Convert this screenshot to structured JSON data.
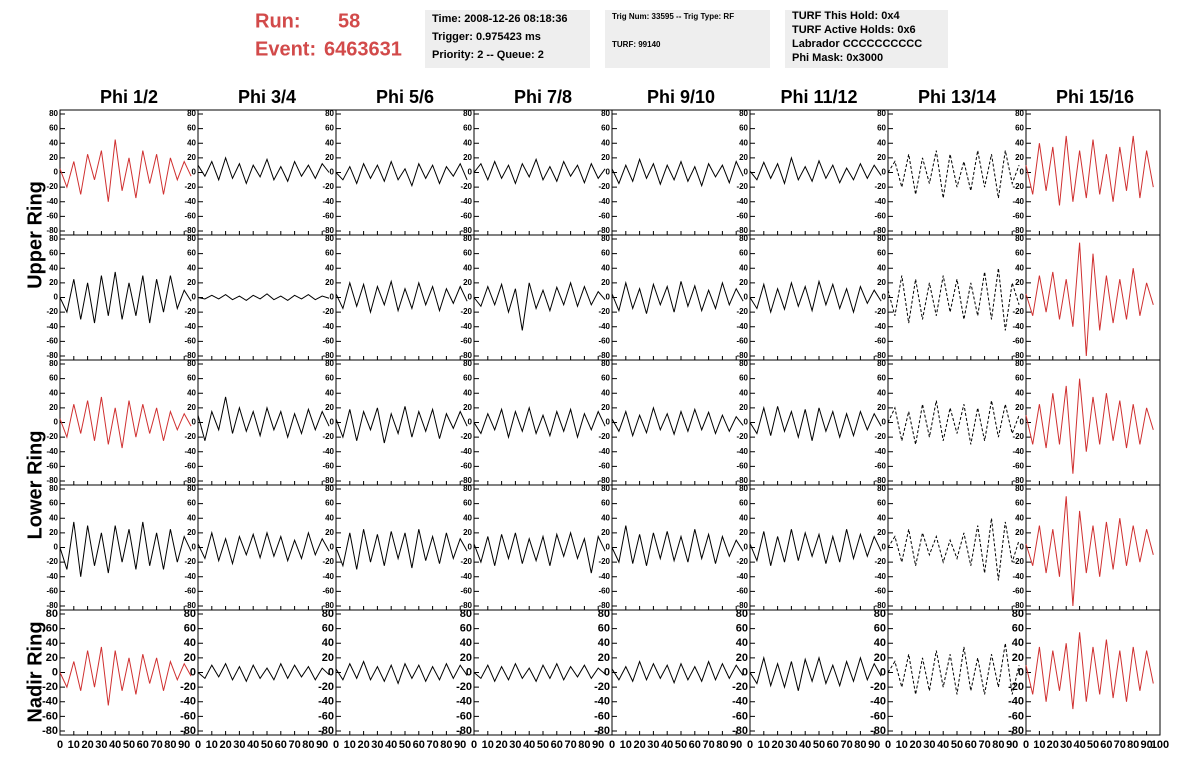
{
  "header": {
    "run_label": "Run:",
    "run": "58",
    "event_label": "Event:",
    "event": "6463631",
    "box1": [
      "Time: 2008-12-26 08:18:36",
      "Trigger: 0.975423 ms",
      "Priority: 2 -- Queue: 2"
    ],
    "box2": [
      "Trig Num: 33595 -- Trig Type: RF",
      "TURF: 99140"
    ],
    "box3": [
      "TURF This Hold: 0x4",
      "TURF Active Holds: 0x6",
      "Labrador CCCCCCCCCC",
      "Phi Mask: 0x3000"
    ]
  },
  "columns": [
    "Phi 1/2",
    "Phi 3/4",
    "Phi 5/6",
    "Phi 7/8",
    "Phi 9/10",
    "Phi 11/12",
    "Phi 13/14",
    "Phi 15/16"
  ],
  "row_labels": [
    "Upper Ring",
    "Lower Ring",
    "Nadir Ring"
  ],
  "chart_data": {
    "type": "line",
    "x": [
      0,
      5,
      10,
      15,
      20,
      25,
      30,
      35,
      40,
      45,
      50,
      55,
      60,
      65,
      70,
      75,
      80,
      85,
      90,
      95
    ],
    "xlim": [
      0,
      100
    ],
    "xticks": [
      0,
      10,
      20,
      30,
      40,
      50,
      60,
      70,
      80,
      90,
      100
    ],
    "ylim": [
      -80,
      80
    ],
    "yticks": [
      80,
      60,
      40,
      20,
      0,
      -20,
      -40,
      -60,
      -80
    ],
    "panels": [
      [
        {
          "color": "#d03030",
          "dashed": false,
          "values": [
            5,
            -20,
            15,
            -30,
            25,
            -10,
            30,
            -40,
            45,
            -25,
            20,
            -35,
            30,
            -15,
            25,
            -30,
            20,
            -10,
            15,
            -5
          ]
        },
        {
          "color": "#000000",
          "dashed": false,
          "values": [
            10,
            -5,
            15,
            -10,
            20,
            -8,
            12,
            -15,
            10,
            -6,
            18,
            -10,
            8,
            -12,
            15,
            -5,
            10,
            -8,
            12,
            0
          ]
        },
        {
          "color": "#000000",
          "dashed": false,
          "values": [
            0,
            -10,
            8,
            -15,
            12,
            -8,
            10,
            -12,
            15,
            -10,
            5,
            -18,
            12,
            -8,
            10,
            -15,
            8,
            -5,
            12,
            -10
          ]
        },
        {
          "color": "#000000",
          "dashed": false,
          "values": [
            0,
            12,
            -10,
            15,
            -8,
            10,
            -15,
            12,
            -6,
            18,
            -10,
            8,
            -12,
            15,
            -5,
            10,
            -14,
            12,
            -8,
            5
          ]
        },
        {
          "color": "#000000",
          "dashed": false,
          "values": [
            5,
            -15,
            10,
            -12,
            18,
            -8,
            12,
            -16,
            10,
            -10,
            15,
            -12,
            8,
            -18,
            12,
            -6,
            10,
            -14,
            15,
            -5
          ]
        },
        {
          "color": "#000000",
          "dashed": false,
          "values": [
            2,
            -10,
            14,
            -8,
            12,
            -15,
            20,
            -10,
            8,
            -12,
            16,
            -8,
            10,
            -14,
            6,
            -10,
            12,
            -8,
            10,
            -4
          ]
        },
        {
          "color": "#000000",
          "dashed": true,
          "values": [
            0,
            15,
            -20,
            25,
            -30,
            20,
            -15,
            30,
            -35,
            25,
            -20,
            15,
            -25,
            30,
            -20,
            25,
            -35,
            30,
            -15,
            10
          ]
        },
        {
          "color": "#d03030",
          "dashed": false,
          "values": [
            10,
            -30,
            40,
            -25,
            35,
            -45,
            50,
            -40,
            30,
            -35,
            45,
            -30,
            25,
            -40,
            35,
            -25,
            50,
            -35,
            30,
            -20
          ]
        }
      ],
      [
        {
          "color": "#000000",
          "dashed": false,
          "values": [
            0,
            -20,
            25,
            -30,
            20,
            -35,
            30,
            -25,
            35,
            -30,
            20,
            -25,
            30,
            -35,
            25,
            -20,
            30,
            -15,
            10,
            -5
          ]
        },
        {
          "color": "#000000",
          "dashed": false,
          "values": [
            0,
            -2,
            3,
            -2,
            4,
            -3,
            2,
            -4,
            3,
            -2,
            5,
            -3,
            2,
            -4,
            3,
            -2,
            4,
            -3,
            2,
            -1
          ]
        },
        {
          "color": "#000000",
          "dashed": false,
          "values": [
            5,
            -15,
            20,
            -12,
            18,
            -20,
            15,
            -10,
            22,
            -18,
            12,
            -15,
            20,
            -10,
            15,
            -18,
            12,
            -8,
            15,
            -5
          ]
        },
        {
          "color": "#000000",
          "dashed": false,
          "values": [
            0,
            -12,
            15,
            -10,
            18,
            -20,
            12,
            -45,
            20,
            -15,
            10,
            -18,
            14,
            -10,
            20,
            -12,
            15,
            -10,
            8,
            -3
          ]
        },
        {
          "color": "#000000",
          "dashed": false,
          "values": [
            5,
            -18,
            20,
            -15,
            12,
            -22,
            18,
            -10,
            15,
            -20,
            22,
            -12,
            16,
            -18,
            10,
            -15,
            20,
            -10,
            12,
            -5
          ]
        },
        {
          "color": "#000000",
          "dashed": false,
          "values": [
            0,
            -15,
            18,
            -20,
            12,
            -16,
            20,
            -12,
            15,
            -18,
            22,
            -10,
            18,
            -15,
            12,
            -20,
            15,
            -8,
            10,
            -5
          ]
        },
        {
          "color": "#000000",
          "dashed": true,
          "values": [
            10,
            -25,
            30,
            -35,
            25,
            -30,
            20,
            -25,
            30,
            -20,
            25,
            -30,
            20,
            -25,
            35,
            -30,
            40,
            -45,
            20,
            -10
          ]
        },
        {
          "color": "#d03030",
          "dashed": false,
          "values": [
            5,
            -25,
            30,
            -20,
            35,
            -30,
            25,
            -40,
            75,
            -80,
            60,
            -45,
            30,
            -35,
            25,
            -30,
            40,
            -25,
            20,
            -10
          ]
        }
      ],
      [
        {
          "color": "#d03030",
          "dashed": false,
          "values": [
            5,
            -20,
            25,
            -15,
            30,
            -25,
            35,
            -30,
            20,
            -35,
            30,
            -20,
            25,
            -15,
            20,
            -25,
            15,
            -10,
            12,
            -5
          ]
        },
        {
          "color": "#000000",
          "dashed": false,
          "values": [
            10,
            -25,
            15,
            -10,
            35,
            -15,
            20,
            -12,
            15,
            -18,
            20,
            -10,
            15,
            -20,
            12,
            -15,
            18,
            -10,
            15,
            -5
          ]
        },
        {
          "color": "#000000",
          "dashed": false,
          "values": [
            5,
            -20,
            18,
            -25,
            15,
            -10,
            20,
            -28,
            12,
            -15,
            22,
            -20,
            15,
            -12,
            18,
            -22,
            12,
            -8,
            15,
            -5
          ]
        },
        {
          "color": "#000000",
          "dashed": false,
          "values": [
            0,
            -15,
            12,
            -10,
            18,
            -20,
            15,
            -12,
            20,
            -15,
            10,
            -18,
            15,
            -12,
            18,
            -20,
            12,
            -10,
            15,
            -5
          ]
        },
        {
          "color": "#000000",
          "dashed": false,
          "values": [
            5,
            -12,
            15,
            -18,
            10,
            -14,
            20,
            -10,
            12,
            -16,
            15,
            -12,
            18,
            -10,
            14,
            -15,
            10,
            -12,
            8,
            -4
          ]
        },
        {
          "color": "#000000",
          "dashed": false,
          "values": [
            0,
            -15,
            20,
            -18,
            22,
            -12,
            15,
            -20,
            18,
            -25,
            20,
            -12,
            15,
            -20,
            12,
            -18,
            15,
            -10,
            12,
            -5
          ]
        },
        {
          "color": "#000000",
          "dashed": true,
          "values": [
            0,
            20,
            -25,
            15,
            -30,
            25,
            -20,
            30,
            -25,
            20,
            -15,
            25,
            -30,
            20,
            -25,
            30,
            -20,
            25,
            -15,
            10
          ]
        },
        {
          "color": "#d03030",
          "dashed": false,
          "values": [
            10,
            -30,
            25,
            -35,
            40,
            -30,
            50,
            -70,
            60,
            -40,
            35,
            -30,
            40,
            -25,
            30,
            -35,
            25,
            -30,
            20,
            -10
          ]
        }
      ],
      [
        {
          "color": "#000000",
          "dashed": false,
          "values": [
            0,
            -30,
            35,
            -40,
            30,
            -25,
            20,
            -35,
            30,
            -20,
            25,
            -30,
            35,
            -25,
            20,
            -30,
            25,
            -20,
            15,
            -5
          ]
        },
        {
          "color": "#000000",
          "dashed": false,
          "values": [
            5,
            -15,
            20,
            -18,
            12,
            -22,
            15,
            -10,
            18,
            -14,
            20,
            -12,
            15,
            -18,
            10,
            -15,
            20,
            -10,
            12,
            -5
          ]
        },
        {
          "color": "#000000",
          "dashed": false,
          "values": [
            0,
            -25,
            20,
            -30,
            25,
            -20,
            18,
            -25,
            22,
            -15,
            20,
            -28,
            25,
            -18,
            15,
            -22,
            20,
            -15,
            12,
            -5
          ]
        },
        {
          "color": "#000000",
          "dashed": false,
          "values": [
            5,
            -20,
            15,
            -25,
            18,
            -15,
            20,
            -22,
            12,
            -18,
            15,
            -25,
            18,
            -12,
            20,
            -15,
            12,
            -35,
            15,
            -5
          ]
        },
        {
          "color": "#000000",
          "dashed": false,
          "values": [
            0,
            -20,
            30,
            -22,
            18,
            -25,
            20,
            -15,
            22,
            -18,
            15,
            -20,
            25,
            -15,
            18,
            -22,
            15,
            -12,
            10,
            -5
          ]
        },
        {
          "color": "#000000",
          "dashed": false,
          "values": [
            5,
            -18,
            22,
            -25,
            15,
            -20,
            25,
            -18,
            20,
            -12,
            18,
            -22,
            15,
            -20,
            25,
            -15,
            18,
            -12,
            15,
            -5
          ]
        },
        {
          "color": "#000000",
          "dashed": true,
          "values": [
            0,
            15,
            -20,
            25,
            -25,
            20,
            -10,
            15,
            -20,
            10,
            -15,
            20,
            -25,
            30,
            -35,
            40,
            -45,
            35,
            -20,
            10
          ]
        },
        {
          "color": "#d03030",
          "dashed": false,
          "values": [
            5,
            -25,
            30,
            -35,
            25,
            -40,
            70,
            -80,
            50,
            -35,
            30,
            -40,
            35,
            -30,
            40,
            -25,
            30,
            -20,
            25,
            -10
          ]
        }
      ],
      [
        {
          "color": "#d03030",
          "dashed": false,
          "values": [
            0,
            -20,
            15,
            -25,
            30,
            -20,
            35,
            -45,
            30,
            -25,
            20,
            -30,
            25,
            -15,
            20,
            -25,
            15,
            -10,
            12,
            -5
          ]
        },
        {
          "color": "#000000",
          "dashed": false,
          "values": [
            0,
            -8,
            10,
            -6,
            12,
            -10,
            8,
            -12,
            10,
            -8,
            6,
            -10,
            12,
            -8,
            10,
            -6,
            8,
            -10,
            6,
            -3
          ]
        },
        {
          "color": "#000000",
          "dashed": false,
          "values": [
            5,
            -10,
            12,
            -8,
            15,
            -10,
            8,
            -12,
            10,
            -15,
            12,
            -8,
            10,
            -12,
            8,
            -10,
            12,
            -8,
            10,
            -4
          ]
        },
        {
          "color": "#000000",
          "dashed": false,
          "values": [
            0,
            -8,
            10,
            -12,
            8,
            -10,
            12,
            -8,
            6,
            -12,
            10,
            -8,
            12,
            -10,
            8,
            -6,
            10,
            -8,
            6,
            -2
          ]
        },
        {
          "color": "#000000",
          "dashed": false,
          "values": [
            5,
            -10,
            8,
            -12,
            15,
            -10,
            12,
            -8,
            10,
            -14,
            12,
            -10,
            8,
            -12,
            15,
            -10,
            12,
            -8,
            10,
            -4
          ]
        },
        {
          "color": "#000000",
          "dashed": false,
          "values": [
            0,
            -15,
            20,
            -18,
            12,
            -20,
            15,
            -25,
            18,
            -12,
            20,
            -15,
            10,
            -18,
            15,
            -12,
            20,
            -10,
            12,
            -5
          ]
        },
        {
          "color": "#000000",
          "dashed": true,
          "values": [
            0,
            15,
            -20,
            25,
            -30,
            20,
            -25,
            30,
            -20,
            25,
            -30,
            35,
            -25,
            20,
            -30,
            25,
            -20,
            40,
            -30,
            10
          ]
        },
        {
          "color": "#d03030",
          "dashed": false,
          "values": [
            10,
            -30,
            35,
            -40,
            30,
            -25,
            40,
            -50,
            55,
            -40,
            35,
            -30,
            45,
            -35,
            30,
            -40,
            35,
            -25,
            30,
            -15
          ]
        }
      ]
    ]
  }
}
